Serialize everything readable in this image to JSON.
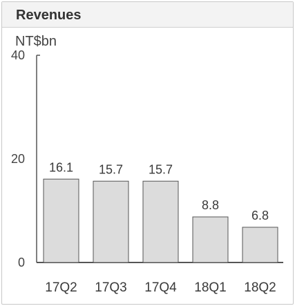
{
  "chart_data": {
    "type": "bar",
    "title": "Revenues",
    "ylabel": "NT$bn",
    "xlabel": "",
    "categories": [
      "17Q2",
      "17Q3",
      "17Q4",
      "18Q1",
      "18Q2"
    ],
    "values": [
      16.1,
      15.7,
      15.7,
      8.8,
      6.8
    ],
    "value_labels": [
      "16.1",
      "15.7",
      "15.7",
      "8.8",
      "6.8"
    ],
    "ylim": [
      0,
      40
    ],
    "y_ticks": [
      "0",
      "20",
      "40"
    ],
    "grid": false,
    "colors": {
      "bar_fill": "#dcdcdc",
      "bar_stroke": "#555555",
      "axis": "#555555"
    }
  }
}
